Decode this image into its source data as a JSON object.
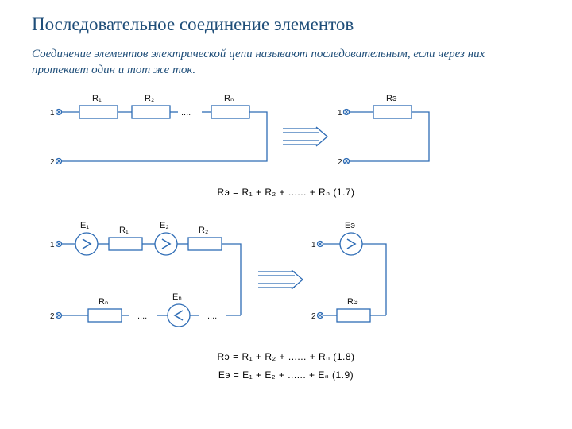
{
  "title_color": "#1f4e79",
  "title": "Последовательное соединение элементов",
  "description": "Соединение элементов электрической цепи называют последовательным, если через них протекает один и тот же ток.",
  "diagram": {
    "wire_color": "#2e6cb5",
    "text_color": "#111111",
    "circuit1": {
      "resistors": [
        "R₁",
        "R₂",
        "Rₙ"
      ],
      "ellipsis": "....",
      "eq_label": "Rэ",
      "terminals": [
        "1",
        "2"
      ]
    },
    "equations": {
      "eq1": "Rэ = R₁ + R₂ + ...... + Rₙ   (1.7)",
      "eq2": "Rэ = R₁ + R₂ + ...... + Rₙ   (1.8)",
      "eq3": "Eэ = E₁ + E₂ + ...... + Eₙ   (1.9)"
    },
    "circuit2": {
      "sources": [
        "E₁",
        "E₂",
        "Eₙ"
      ],
      "resistors": [
        "R₁",
        "R₂",
        "Rₙ"
      ],
      "eq_source": "Eэ",
      "eq_res": "Rэ",
      "terminals": [
        "1",
        "2"
      ]
    }
  }
}
